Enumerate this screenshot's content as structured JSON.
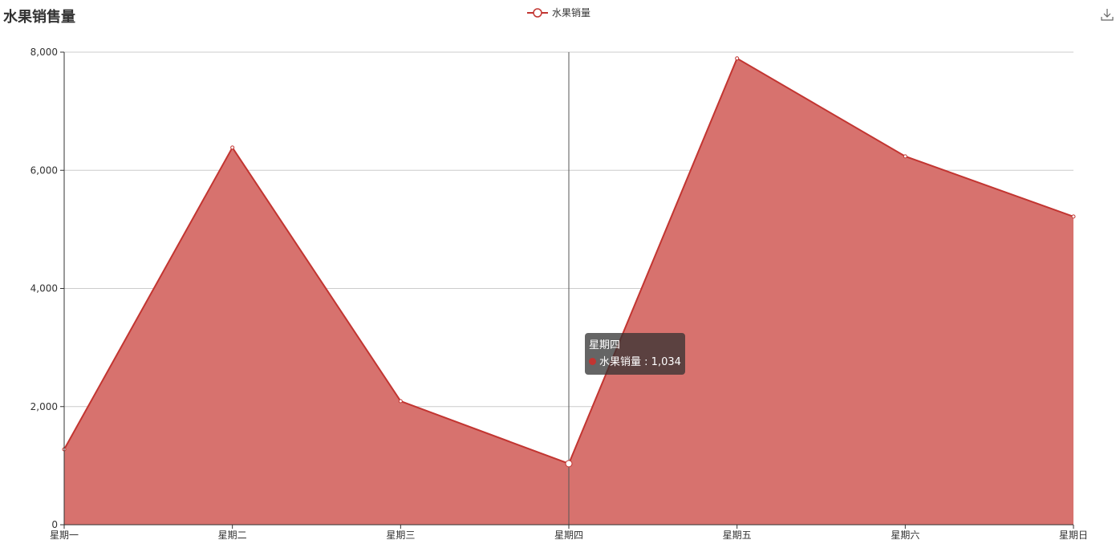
{
  "title": "水果销售量",
  "toolbox": {
    "download_icon": "download-icon"
  },
  "colors": {
    "line": "#c23531",
    "area": "#d7726e",
    "grid": "#cccccc",
    "tooltip_bg": "#323232"
  },
  "chart_data": {
    "type": "area",
    "title": "水果销售量",
    "categories": [
      "星期一",
      "星期二",
      "星期三",
      "星期四",
      "星期五",
      "星期六",
      "星期日"
    ],
    "series": [
      {
        "name": "水果销量",
        "values": [
          1277,
          6385,
          2092,
          1034,
          7894,
          6236,
          5217
        ]
      }
    ],
    "ylim": [
      0,
      8000
    ],
    "yticks": [
      "0",
      "2,000",
      "4,000",
      "6,000",
      "8,000"
    ],
    "ytick_values": [
      0,
      2000,
      4000,
      6000,
      8000
    ],
    "grid": true,
    "legend": "top-center",
    "tooltip": {
      "category": "星期四",
      "series": "水果销量",
      "value": "1,034",
      "separator": " : "
    }
  }
}
